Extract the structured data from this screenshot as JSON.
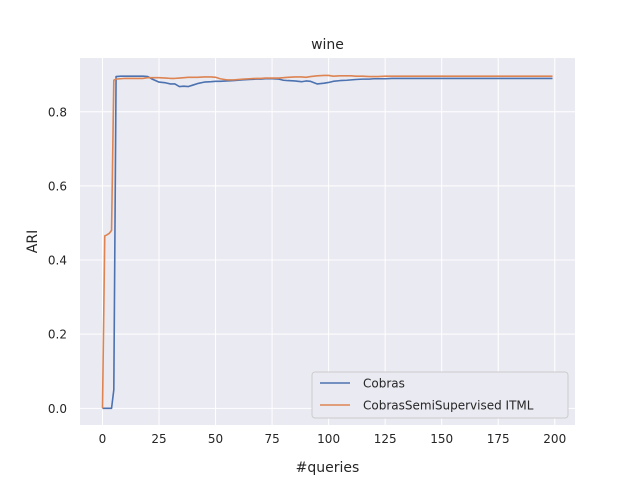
{
  "chart_data": {
    "type": "line",
    "title": "wine",
    "xlabel": "#queries",
    "ylabel": "ARI",
    "xlim": [
      -9.95,
      208.95
    ],
    "ylim": [
      -0.045,
      0.945
    ],
    "xticks": [
      0,
      25,
      50,
      75,
      100,
      125,
      150,
      175,
      200
    ],
    "yticks": [
      0.0,
      0.2,
      0.4,
      0.6,
      0.8
    ],
    "ytick_labels": [
      "0.0",
      "0.2",
      "0.4",
      "0.6",
      "0.8"
    ],
    "grid": true,
    "legend_position": "lower-right",
    "background_color": "#eaeaf2",
    "grid_color": "#ffffff",
    "series": [
      {
        "name": "Cobras",
        "color": "#4c72b0",
        "x": [
          0,
          1,
          2,
          3,
          4,
          5,
          6,
          8,
          10,
          12,
          15,
          18,
          20,
          22,
          25,
          28,
          30,
          32,
          34,
          36,
          38,
          40,
          42,
          45,
          48,
          50,
          52,
          55,
          58,
          60,
          62,
          65,
          68,
          70,
          72,
          75,
          78,
          80,
          82,
          85,
          88,
          90,
          92,
          95,
          98,
          100,
          102,
          105,
          108,
          110,
          112,
          115,
          118,
          120,
          122,
          125,
          128,
          130,
          135,
          140,
          150,
          160,
          170,
          180,
          190,
          199
        ],
        "y": [
          0.0,
          0.0,
          0.0,
          0.0,
          0.0,
          0.05,
          0.895,
          0.896,
          0.896,
          0.896,
          0.896,
          0.896,
          0.895,
          0.888,
          0.88,
          0.878,
          0.875,
          0.875,
          0.868,
          0.869,
          0.868,
          0.872,
          0.876,
          0.88,
          0.881,
          0.882,
          0.882,
          0.883,
          0.884,
          0.885,
          0.886,
          0.887,
          0.888,
          0.888,
          0.889,
          0.889,
          0.888,
          0.885,
          0.884,
          0.883,
          0.881,
          0.883,
          0.882,
          0.875,
          0.877,
          0.879,
          0.882,
          0.884,
          0.885,
          0.886,
          0.887,
          0.888,
          0.888,
          0.889,
          0.889,
          0.889,
          0.89,
          0.89,
          0.89,
          0.89,
          0.89,
          0.89,
          0.89,
          0.89,
          0.89,
          0.89
        ]
      },
      {
        "name": "CobrasSemiSupervised ITML",
        "color": "#dd8452",
        "x": [
          0,
          1,
          2,
          3,
          4,
          5,
          6,
          8,
          10,
          12,
          15,
          18,
          20,
          22,
          25,
          28,
          30,
          32,
          34,
          36,
          38,
          40,
          42,
          45,
          48,
          50,
          52,
          55,
          58,
          60,
          62,
          65,
          68,
          70,
          72,
          75,
          78,
          80,
          82,
          85,
          88,
          90,
          92,
          95,
          98,
          100,
          102,
          105,
          108,
          110,
          112,
          115,
          118,
          120,
          122,
          125,
          128,
          130,
          135,
          140,
          150,
          160,
          170,
          180,
          190,
          199
        ],
        "y": [
          0.0,
          0.465,
          0.468,
          0.472,
          0.48,
          0.885,
          0.888,
          0.889,
          0.89,
          0.89,
          0.89,
          0.89,
          0.892,
          0.892,
          0.892,
          0.891,
          0.89,
          0.89,
          0.891,
          0.892,
          0.893,
          0.893,
          0.893,
          0.894,
          0.894,
          0.893,
          0.889,
          0.886,
          0.886,
          0.887,
          0.888,
          0.889,
          0.89,
          0.89,
          0.891,
          0.891,
          0.891,
          0.892,
          0.893,
          0.894,
          0.894,
          0.893,
          0.895,
          0.897,
          0.898,
          0.898,
          0.896,
          0.897,
          0.897,
          0.897,
          0.896,
          0.896,
          0.895,
          0.895,
          0.895,
          0.896,
          0.896,
          0.896,
          0.896,
          0.896,
          0.896,
          0.896,
          0.896,
          0.896,
          0.896,
          0.896
        ]
      }
    ]
  }
}
